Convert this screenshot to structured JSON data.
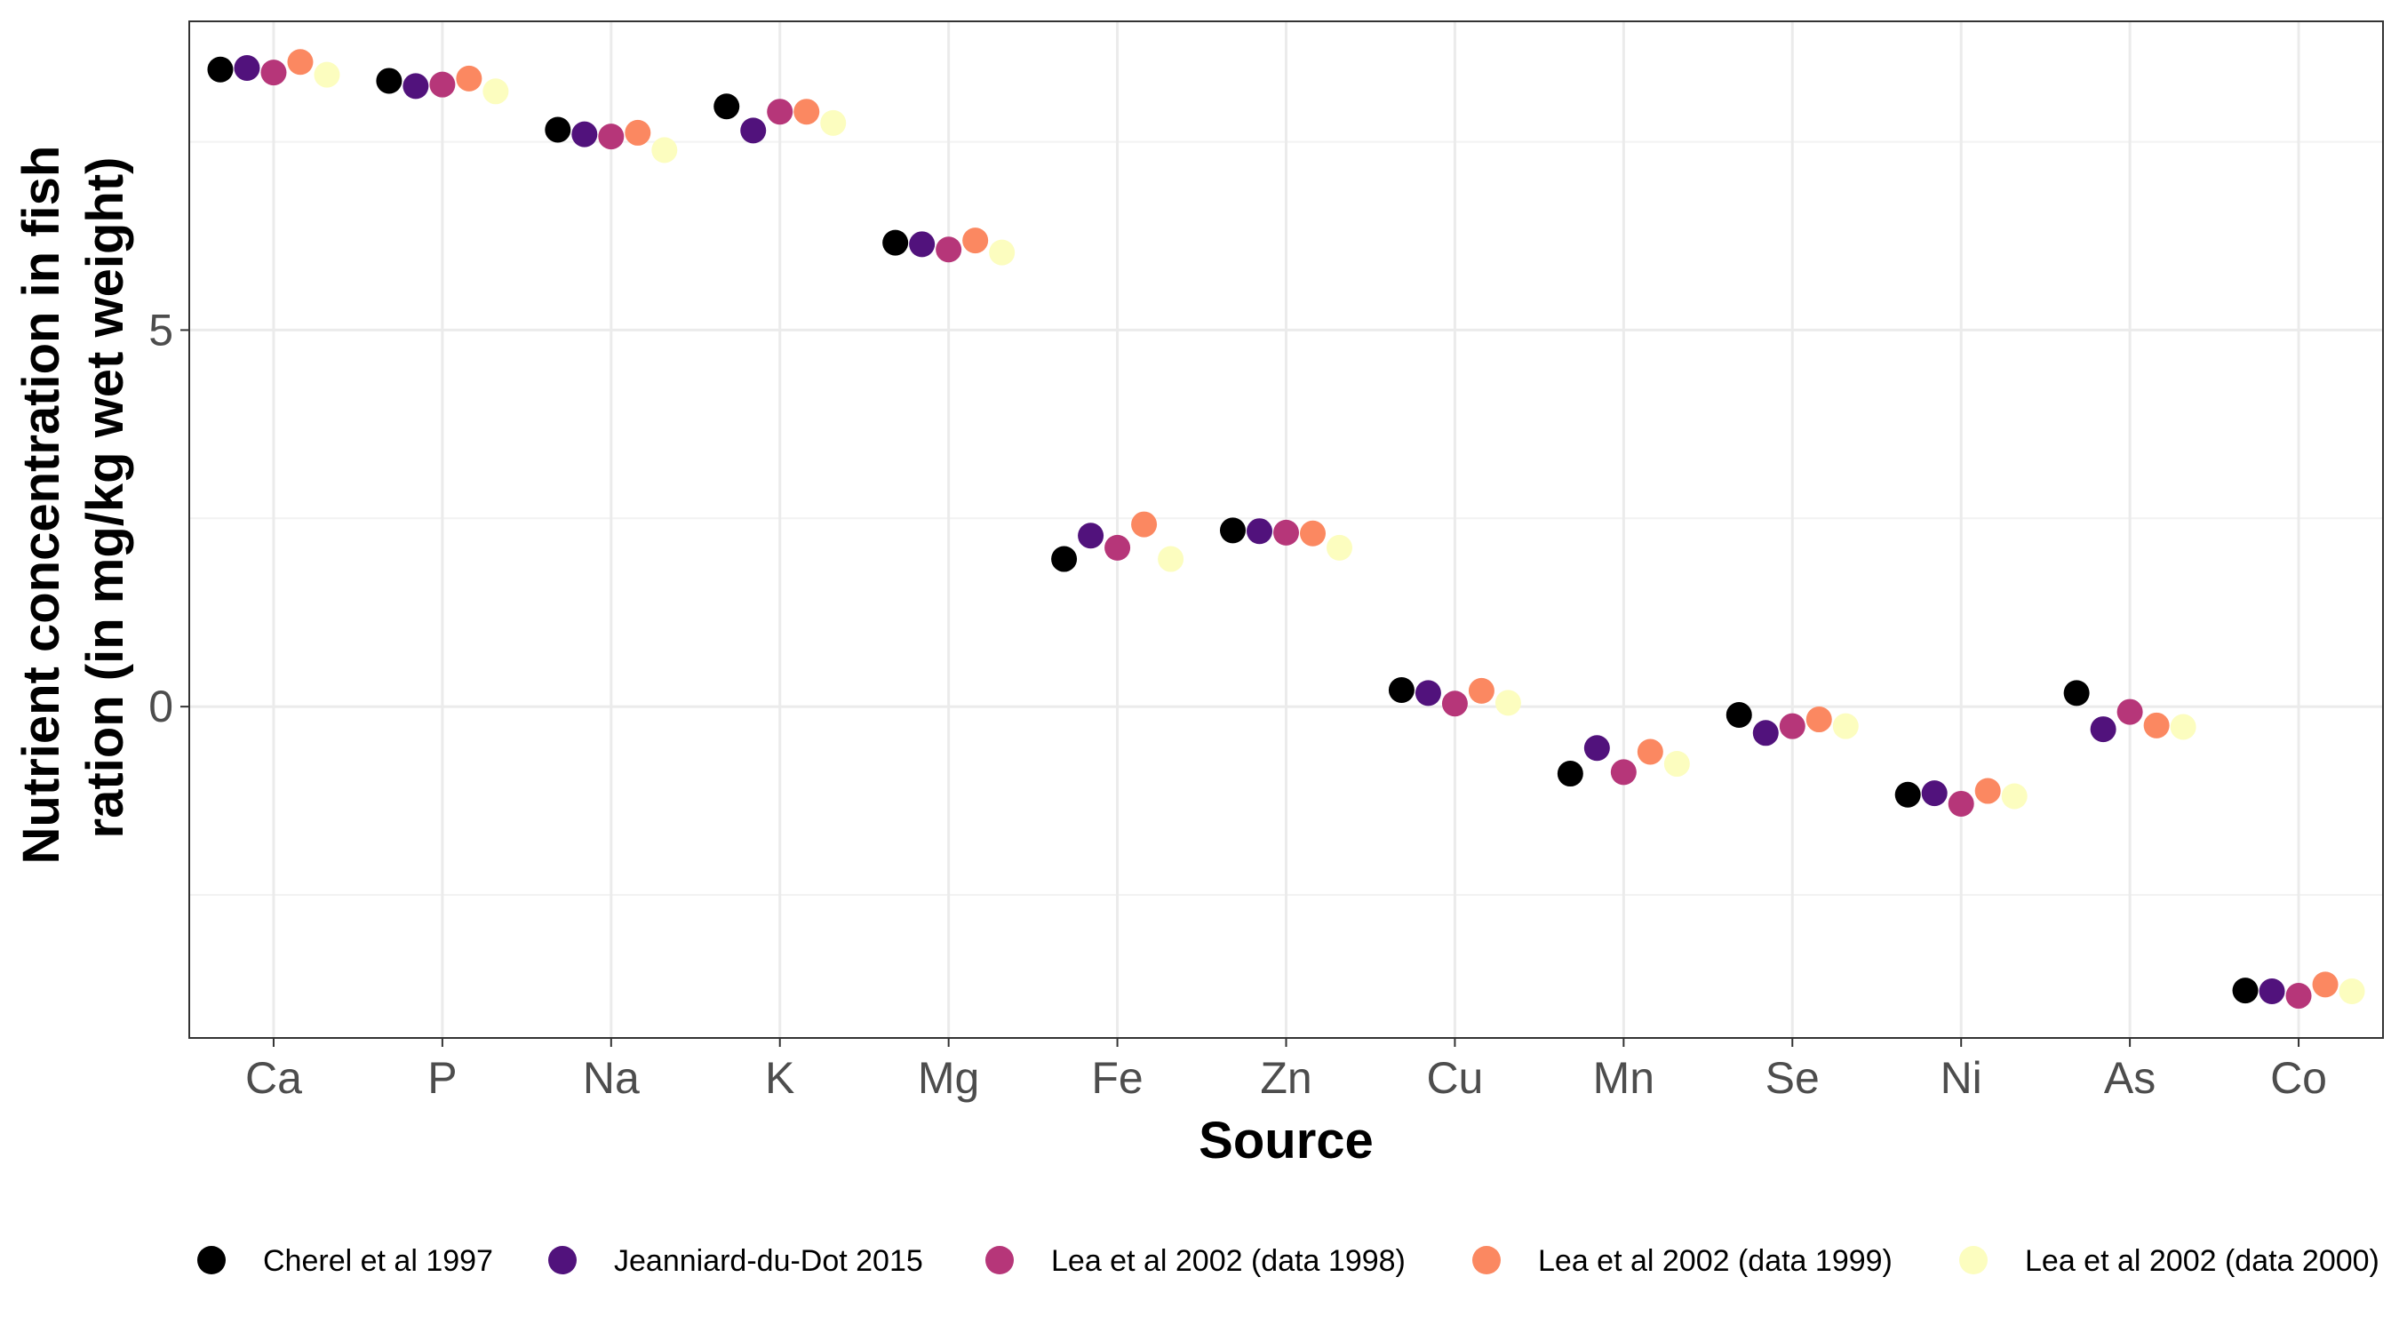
{
  "chart_data": {
    "type": "scatter",
    "title": "",
    "xlabel": "Source",
    "ylabel": "Nutrient concentration in fish ration (in mg/kg wet weight)",
    "ylabel_lines": [
      "Nutrient concentration in fish",
      "ration (in mg/kg wet weight)"
    ],
    "categories": [
      "Ca",
      "P",
      "Na",
      "K",
      "Mg",
      "Fe",
      "Zn",
      "Cu",
      "Mn",
      "Se",
      "Ni",
      "As",
      "Co"
    ],
    "ylim": [
      -4.4,
      9.1
    ],
    "y_ticks": [
      0,
      5
    ],
    "y_minor_ticks": [
      -2.5,
      2.5,
      7.5
    ],
    "grid": true,
    "legend_position": "bottom",
    "series": [
      {
        "name": "Cherel et al 1997",
        "color": "#000000",
        "values": [
          8.46,
          8.31,
          7.66,
          7.97,
          6.16,
          1.96,
          2.34,
          0.22,
          -0.89,
          -0.11,
          -1.17,
          0.18,
          -3.77
        ]
      },
      {
        "name": "Jeanniard-du-Dot 2015",
        "color": "#51127C",
        "values": [
          8.48,
          8.24,
          7.6,
          7.65,
          6.14,
          2.27,
          2.33,
          0.18,
          -0.55,
          -0.35,
          -1.15,
          -0.3,
          -3.78
        ]
      },
      {
        "name": "Lea et al 2002 (data 1998)",
        "color": "#B63679",
        "values": [
          8.42,
          8.26,
          7.57,
          7.9,
          6.07,
          2.11,
          2.31,
          0.04,
          -0.87,
          -0.26,
          -1.29,
          -0.07,
          -3.84
        ]
      },
      {
        "name": "Lea et al 2002 (data 1999)",
        "color": "#FB8861",
        "values": [
          8.56,
          8.34,
          7.62,
          7.9,
          6.19,
          2.42,
          2.3,
          0.21,
          -0.6,
          -0.17,
          -1.12,
          -0.25,
          -3.69
        ]
      },
      {
        "name": "Lea et al 2002 (data 2000)",
        "color": "#FCFDBF",
        "values": [
          8.39,
          8.17,
          7.39,
          7.75,
          6.03,
          1.96,
          2.11,
          0.05,
          -0.76,
          -0.26,
          -1.19,
          -0.27,
          -3.78
        ]
      }
    ]
  }
}
